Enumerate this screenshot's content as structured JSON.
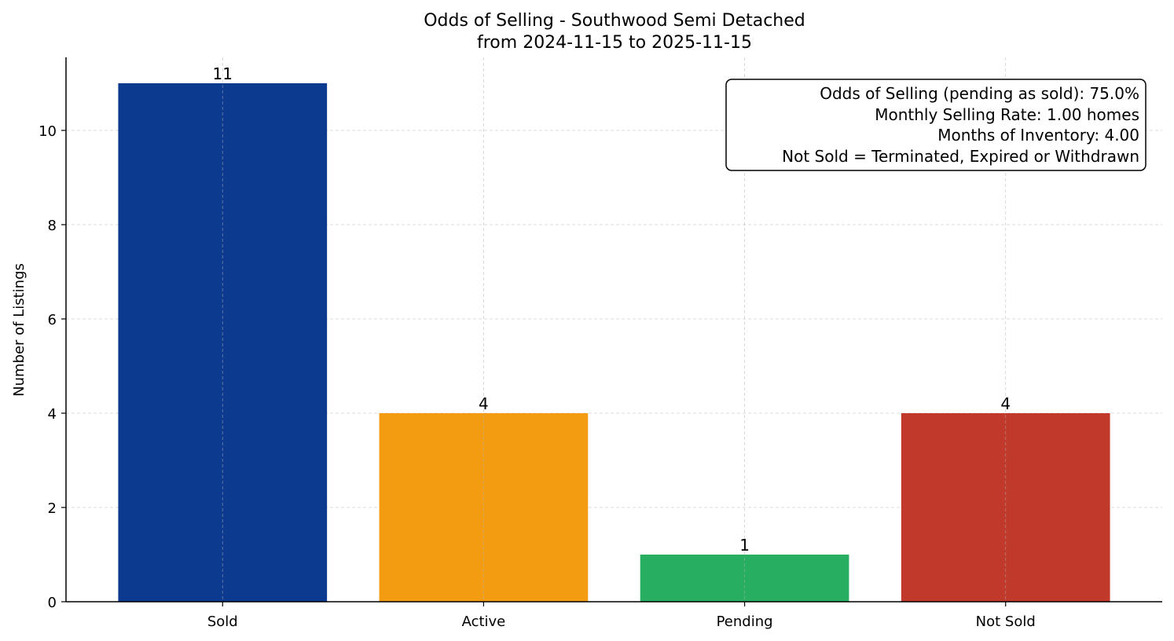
{
  "chart_data": {
    "type": "bar",
    "title_line1": "Odds of Selling - Southwood Semi Detached",
    "title_line2": "from 2024-11-15 to 2025-11-15",
    "xlabel": "",
    "ylabel": "Number of Listings",
    "ylim": [
      0,
      11.55
    ],
    "yticks": [
      0,
      2,
      4,
      6,
      8,
      10
    ],
    "grid": true,
    "categories": [
      "Sold",
      "Active",
      "Pending",
      "Not Sold"
    ],
    "values": [
      11,
      4,
      1,
      4
    ],
    "colors": [
      "#0b3a8f",
      "#f39c12",
      "#27ae60",
      "#c0392b"
    ],
    "data_labels": [
      "11",
      "4",
      "1",
      "4"
    ],
    "annotation_box": {
      "placement": "top-right",
      "lines": [
        "Odds of Selling (pending as sold): 75.0%",
        "Monthly Selling Rate: 1.00 homes",
        "Months of Inventory: 4.00",
        "Not Sold = Terminated, Expired or Withdrawn"
      ]
    }
  }
}
